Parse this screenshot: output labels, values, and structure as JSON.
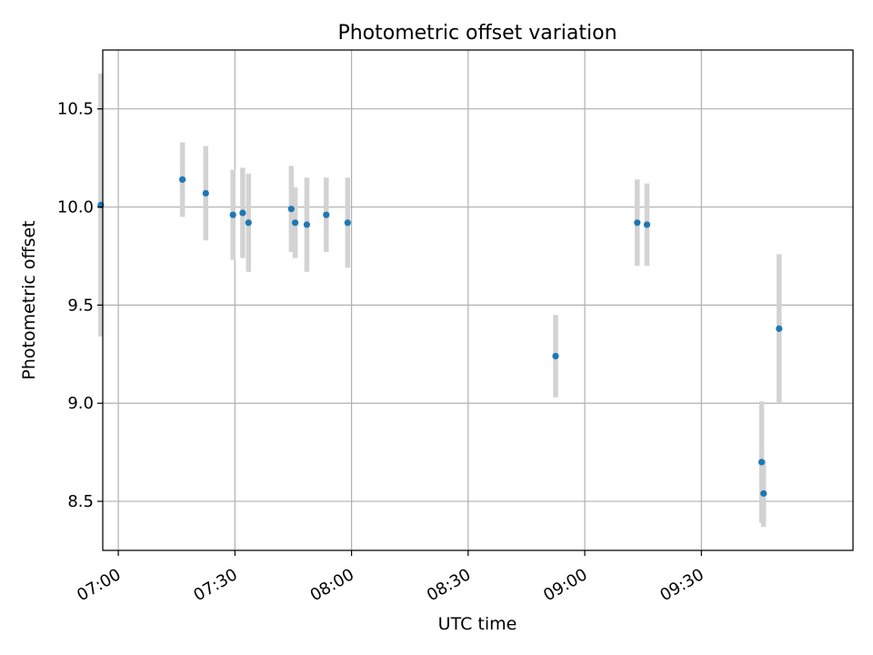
{
  "chart_data": {
    "type": "scatter",
    "title": "Photometric offset variation",
    "xlabel": "UTC time",
    "ylabel": "Photometric offset",
    "grid": true,
    "x_axis": "time",
    "xlim": [
      "06:56",
      "10:09"
    ],
    "ylim": [
      8.25,
      10.8
    ],
    "x_ticks": [
      "07:00",
      "07:30",
      "08:00",
      "08:30",
      "09:00",
      "09:30"
    ],
    "y_ticks": [
      "8.5",
      "9.0",
      "9.5",
      "10.0",
      "10.5"
    ],
    "colors": {
      "points": "#1f77b4",
      "error_bars": "#d3d3d3",
      "grid": "#b0b0b0"
    },
    "series": [
      {
        "points": [
          {
            "x": "06:55:30",
            "y": 10.01,
            "err": 0.67
          },
          {
            "x": "07:16:30",
            "y": 10.14,
            "err": 0.19
          },
          {
            "x": "07:22:30",
            "y": 10.07,
            "err": 0.24
          },
          {
            "x": "07:29:30",
            "y": 9.96,
            "err": 0.23
          },
          {
            "x": "07:32:00",
            "y": 9.97,
            "err": 0.23
          },
          {
            "x": "07:33:30",
            "y": 9.92,
            "err": 0.25
          },
          {
            "x": "07:44:30",
            "y": 9.99,
            "err": 0.22
          },
          {
            "x": "07:45:30",
            "y": 9.92,
            "err": 0.18
          },
          {
            "x": "07:48:30",
            "y": 9.91,
            "err": 0.24
          },
          {
            "x": "07:53:30",
            "y": 9.96,
            "err": 0.19
          },
          {
            "x": "07:59:00",
            "y": 9.92,
            "err": 0.23
          },
          {
            "x": "08:52:30",
            "y": 9.24,
            "err": 0.21
          },
          {
            "x": "09:13:30",
            "y": 9.92,
            "err": 0.22
          },
          {
            "x": "09:16:00",
            "y": 9.91,
            "err": 0.21
          },
          {
            "x": "09:45:30",
            "y": 8.7,
            "err": 0.31
          },
          {
            "x": "09:46:00",
            "y": 8.54,
            "err": 0.17
          },
          {
            "x": "09:50:00",
            "y": 9.38,
            "err": 0.38
          }
        ]
      }
    ]
  }
}
